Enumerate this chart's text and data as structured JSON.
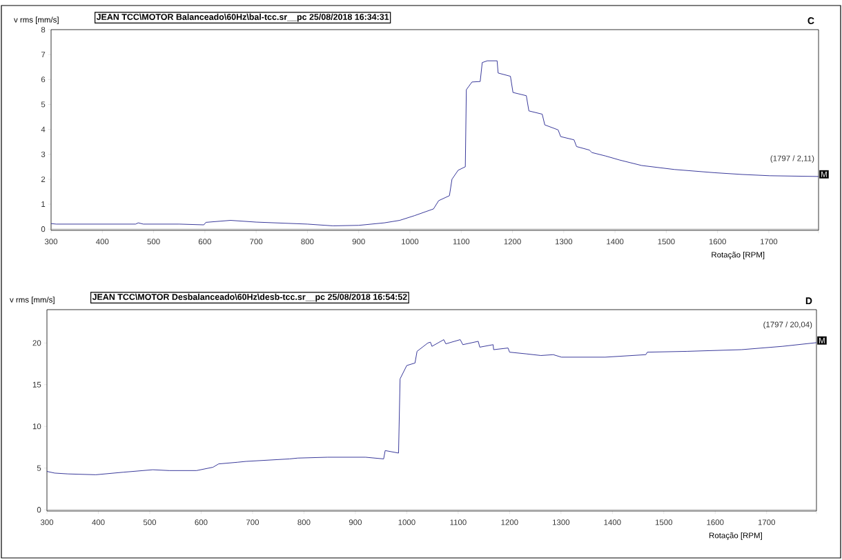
{
  "chart_data": [
    {
      "type": "line",
      "title": "JEAN TCC\\MOTOR Balanceado\\60Hz\\bal-tcc.sr__pc 25/08/2018 16:34:31",
      "ylabel": "v rms [mm/s]",
      "xlabel": "Rotação  [RPM]",
      "annotations": [
        "C",
        "(1797 / 2,11)",
        {
          "text": "M",
          "x": 1797,
          "y": 2.11
        }
      ],
      "x": [
        300,
        310,
        400,
        465,
        470,
        480,
        550,
        598,
        602,
        650,
        700,
        800,
        850,
        900,
        950,
        980,
        1009,
        1046,
        1056,
        1077,
        1082,
        1094,
        1108,
        1110,
        1121,
        1137,
        1141,
        1151,
        1170,
        1172,
        1196,
        1201,
        1227,
        1232,
        1258,
        1263,
        1289,
        1294,
        1320,
        1325,
        1350,
        1355,
        1382,
        1409,
        1452,
        1516,
        1595,
        1649,
        1702,
        1797
      ],
      "values": [
        0.22,
        0.2,
        0.2,
        0.2,
        0.25,
        0.2,
        0.2,
        0.17,
        0.27,
        0.35,
        0.28,
        0.2,
        0.13,
        0.15,
        0.25,
        0.35,
        0.54,
        0.81,
        1.14,
        1.34,
        2.0,
        2.36,
        2.5,
        5.59,
        5.9,
        5.92,
        6.68,
        6.75,
        6.75,
        6.26,
        6.13,
        5.48,
        5.35,
        4.74,
        4.61,
        4.18,
        3.98,
        3.71,
        3.58,
        3.31,
        3.17,
        3.07,
        2.93,
        2.77,
        2.55,
        2.39,
        2.26,
        2.19,
        2.14,
        2.11
      ],
      "color": "#23238e",
      "marker": "none",
      "xlim": [
        300,
        1797
      ],
      "ylim": [
        -0.05,
        8
      ],
      "xticks": [
        300,
        400,
        500,
        600,
        700,
        800,
        900,
        1000,
        1100,
        1200,
        1300,
        1400,
        1500,
        1600,
        1700,
        {
          "value": 1797,
          "label": null
        }
      ],
      "yticks": [
        0,
        1,
        2,
        3,
        4,
        5,
        6,
        7,
        8
      ],
      "ref_lines": [
        {
          "axis": "y",
          "value": 0,
          "color": "#a0a0a0"
        }
      ]
    },
    {
      "type": "line",
      "title": "JEAN TCC\\MOTOR Desbalanceado\\60Hz\\desb-tcc.sr__pc 25/08/2018 16:54:52",
      "ylabel": "v rms [mm/s]",
      "xlabel": "Rotação  [RPM]",
      "annotations": [
        "D",
        "(1797 / 20,04)",
        {
          "text": "M",
          "x": 1797,
          "y": 20.04
        }
      ],
      "x": [
        300,
        315,
        341,
        395,
        448,
        506,
        538,
        591,
        623,
        634,
        671,
        687,
        772,
        788,
        846,
        920,
        955,
        958,
        984,
        987,
        1000,
        1016,
        1020,
        1041,
        1046,
        1049,
        1072,
        1076,
        1104,
        1109,
        1139,
        1142,
        1168,
        1169,
        1197,
        1200,
        1232,
        1261,
        1285,
        1301,
        1386,
        1465,
        1468,
        1545,
        1651,
        1731,
        1797
      ],
      "values": [
        4.6,
        4.4,
        4.3,
        4.2,
        4.5,
        4.8,
        4.7,
        4.7,
        5.1,
        5.5,
        5.7,
        5.8,
        6.1,
        6.2,
        6.3,
        6.3,
        6.1,
        7.1,
        6.8,
        15.7,
        17.3,
        17.6,
        19.0,
        20.0,
        20.1,
        19.6,
        20.4,
        19.9,
        20.4,
        19.8,
        20.2,
        19.5,
        19.8,
        19.2,
        19.4,
        18.9,
        18.7,
        18.5,
        18.6,
        18.3,
        18.3,
        18.6,
        18.9,
        19.0,
        19.2,
        19.6,
        20.04
      ],
      "color": "#23238e",
      "marker": "none",
      "xlim": [
        300,
        1797
      ],
      "ylim": [
        -0.15,
        24
      ],
      "xticks": [
        300,
        400,
        500,
        600,
        700,
        800,
        900,
        1000,
        1100,
        1200,
        1300,
        1400,
        1500,
        1600,
        1700,
        {
          "value": 1797,
          "label": null
        }
      ],
      "yticks": [
        0,
        5,
        10,
        15,
        20
      ],
      "ref_lines": [
        {
          "axis": "y",
          "value": 0,
          "color": "#a0a0a0"
        }
      ]
    }
  ]
}
